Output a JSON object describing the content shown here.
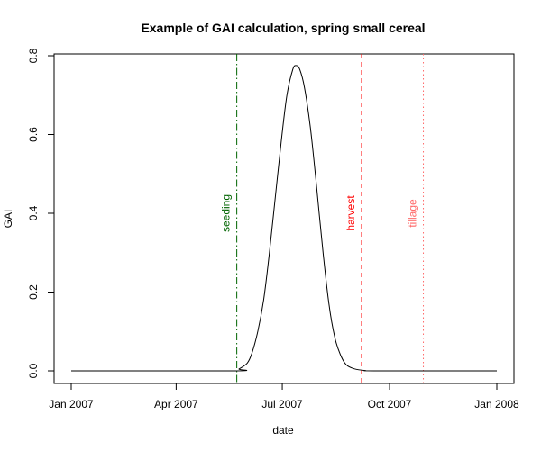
{
  "chart_data": {
    "type": "line",
    "title": "Example of GAI calculation, spring small cereal",
    "xlabel": "date",
    "ylabel": "GAI",
    "xlim": [
      "2007-01-01",
      "2008-01-01"
    ],
    "ylim": [
      0,
      0.8
    ],
    "x_ticks": [
      {
        "date": "2007-01-01",
        "label": "Jan 2007"
      },
      {
        "date": "2007-04-01",
        "label": "Apr 2007"
      },
      {
        "date": "2007-07-01",
        "label": "Jul 2007"
      },
      {
        "date": "2007-10-01",
        "label": "Oct 2007"
      },
      {
        "date": "2008-01-01",
        "label": "Jan 2008"
      }
    ],
    "y_ticks": [
      {
        "value": 0.0,
        "label": "0.0"
      },
      {
        "value": 0.2,
        "label": "0.2"
      },
      {
        "value": 0.4,
        "label": "0.4"
      },
      {
        "value": 0.6,
        "label": "0.6"
      },
      {
        "value": 0.8,
        "label": "0.8"
      }
    ],
    "grid": false,
    "series": [
      {
        "color": "#000000",
        "x": [
          "2007-01-01",
          "2007-05-20",
          "2007-05-25",
          "2007-06-01",
          "2007-06-05",
          "2007-06-10",
          "2007-06-15",
          "2007-06-20",
          "2007-06-25",
          "2007-06-30",
          "2007-07-05",
          "2007-07-10",
          "2007-07-13",
          "2007-07-16",
          "2007-07-20",
          "2007-07-25",
          "2007-07-30",
          "2007-08-05",
          "2007-08-10",
          "2007-08-15",
          "2007-08-20",
          "2007-08-25",
          "2007-09-01",
          "2007-09-10",
          "2007-09-20",
          "2008-01-01"
        ],
        "values": [
          0.0,
          0.0,
          0.005,
          0.02,
          0.045,
          0.1,
          0.18,
          0.3,
          0.44,
          0.58,
          0.7,
          0.765,
          0.775,
          0.765,
          0.72,
          0.62,
          0.48,
          0.3,
          0.17,
          0.085,
          0.04,
          0.015,
          0.005,
          0.001,
          0.0,
          0.0
        ]
      }
    ],
    "events": [
      {
        "date": "2007-05-23",
        "label": "seeding",
        "color": "#006400",
        "linestyle": "dashdot"
      },
      {
        "date": "2007-09-07",
        "label": "harvest",
        "color": "#ff0000",
        "linestyle": "dashed"
      },
      {
        "date": "2007-10-30",
        "label": "tillage",
        "color": "#ff6a6a",
        "linestyle": "dotted"
      }
    ]
  }
}
